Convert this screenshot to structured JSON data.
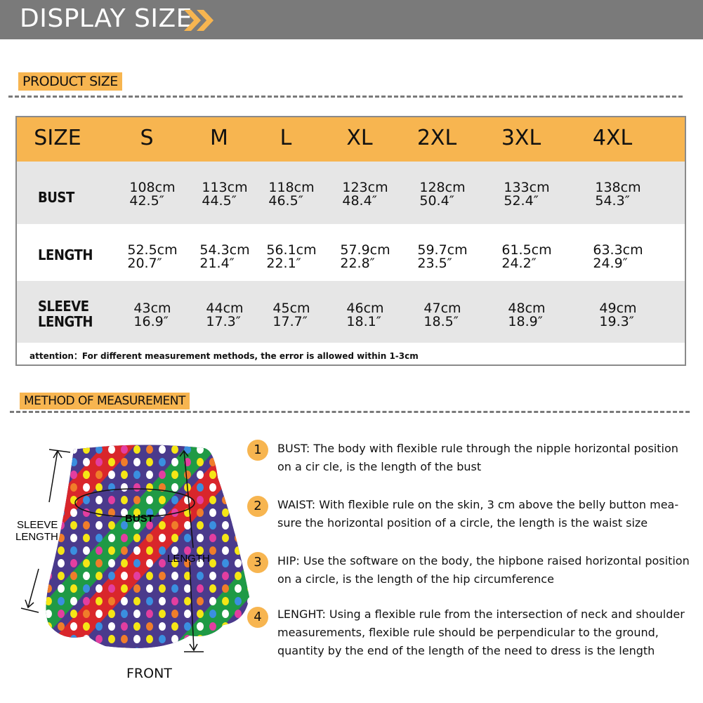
{
  "banner": {
    "title": "DISPLAY SIZE",
    "icon": "double-chevron-right-icon",
    "accent": "#f7b550"
  },
  "product_size": {
    "label": "PRODUCT SIZE"
  },
  "table": {
    "header_label": "SIZE",
    "sizes": [
      "S",
      "M",
      "L",
      "XL",
      "2XL",
      "3XL",
      "4XL"
    ],
    "rows": [
      {
        "label": "BUST",
        "cm": [
          "108cm",
          "113cm",
          "118cm",
          "123cm",
          "128cm",
          "133cm",
          "138cm"
        ],
        "in": [
          "42.5″",
          "44.5″",
          "46.5″",
          "48.4″",
          "50.4″",
          "52.4″",
          "54.3″"
        ]
      },
      {
        "label": "LENGTH",
        "cm": [
          "52.5cm",
          "54.3cm",
          "56.1cm",
          "57.9cm",
          "59.7cm",
          "61.5cm",
          "63.3cm"
        ],
        "in": [
          "20.7″",
          "21.4″",
          "22.1″",
          "22.8″",
          "23.5″",
          "24.2″",
          "24.9″"
        ]
      },
      {
        "label": "SLEEVE LENGTH",
        "cm": [
          "43cm",
          "44cm",
          "45cm",
          "46cm",
          "47cm",
          "48cm",
          "49cm"
        ],
        "in": [
          "16.9″",
          "17.3″",
          "17.7″",
          "18.1″",
          "18.5″",
          "18.9″",
          "19.3″"
        ]
      }
    ],
    "attention": "attention：For different measurement methods, the error is allowed within 1-3cm"
  },
  "method": {
    "label": "METHOD OF MEASUREMENT"
  },
  "garment": {
    "sleeve_label_1": "SLEEVE",
    "sleeve_label_2": "LENGTH",
    "bust_label": "BUST",
    "length_label": "LENGTH",
    "view_label": "FRONT"
  },
  "steps": [
    {
      "num": "1",
      "text": "BUST: The body with flexible rule through the nipple horizontal position on a cir   cle, is the length of the bust"
    },
    {
      "num": "2",
      "text": "WAIST: With flexible rule on the skin, 3 cm above the belly button mea-sure the horizontal position of a circle, the length is the waist size"
    },
    {
      "num": "3",
      "text": "HIP: Use the software on the body, the hipbone raised horizontal position on a circle, is the length of the hip circumference"
    },
    {
      "num": "4",
      "text": "LENGHT: Using a flexible rule from the intersection of neck and shoulder measurements, flexible rule should be perpendicular to the ground, quantity by the end of the length of the need to dress is the length"
    }
  ]
}
